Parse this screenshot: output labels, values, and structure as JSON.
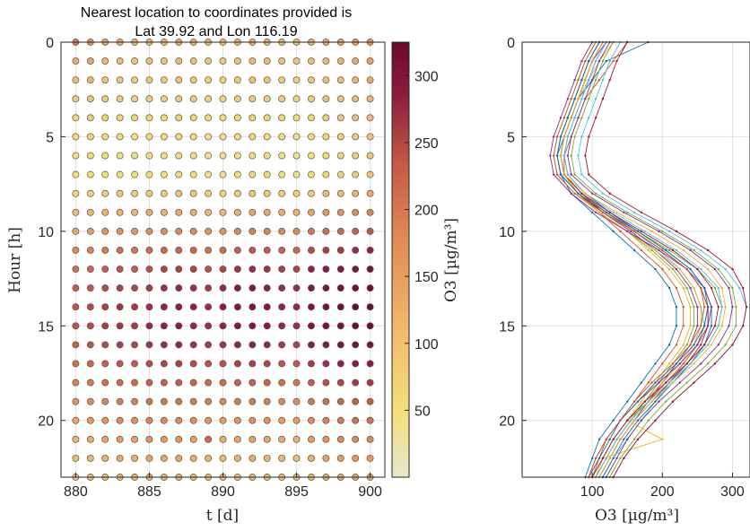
{
  "chart_data": [
    {
      "type": "scatter",
      "title": "Nearest location to coordinates provided is Lat 39.92 and Lon 116.19",
      "title_lines": [
        "Nearest location to coordinates provided is",
        "Lat 39.92 and Lon 116.19"
      ],
      "xlabel": "t [d]",
      "ylabel": "Hour [h]",
      "xlim": [
        879,
        901
      ],
      "ylim": [
        0,
        23
      ],
      "y_reversed": true,
      "x_ticks": [
        880,
        885,
        890,
        895,
        900
      ],
      "y_ticks": [
        0,
        5,
        10,
        15,
        20
      ],
      "grid": true,
      "x_days": [
        880,
        881,
        882,
        883,
        884,
        885,
        886,
        887,
        888,
        889,
        890,
        891,
        892,
        893,
        894,
        895,
        896,
        897,
        898,
        899,
        900
      ],
      "hours": [
        0,
        1,
        2,
        3,
        4,
        5,
        6,
        7,
        8,
        9,
        10,
        11,
        12,
        13,
        14,
        15,
        16,
        17,
        18,
        19,
        20,
        21,
        22,
        23
      ],
      "o3_matrix_by_day": [
        [
          180,
          120,
          100,
          80,
          70,
          60,
          50,
          55,
          70,
          100,
          130,
          160,
          190,
          210,
          220,
          220,
          210,
          190,
          170,
          150,
          130,
          110,
          100,
          90
        ],
        [
          150,
          130,
          110,
          90,
          80,
          70,
          60,
          60,
          80,
          110,
          140,
          170,
          200,
          220,
          230,
          230,
          220,
          200,
          180,
          160,
          140,
          120,
          110,
          100
        ],
        [
          130,
          110,
          95,
          80,
          70,
          60,
          55,
          60,
          80,
          110,
          150,
          180,
          210,
          230,
          240,
          240,
          230,
          210,
          190,
          170,
          150,
          130,
          115,
          105
        ],
        [
          120,
          100,
          90,
          80,
          70,
          60,
          55,
          60,
          85,
          115,
          155,
          190,
          220,
          240,
          250,
          250,
          240,
          220,
          200,
          180,
          160,
          140,
          125,
          110
        ],
        [
          110,
          95,
          85,
          75,
          65,
          55,
          50,
          55,
          80,
          110,
          150,
          185,
          215,
          235,
          245,
          245,
          235,
          215,
          195,
          175,
          155,
          135,
          120,
          105
        ],
        [
          115,
          100,
          90,
          80,
          70,
          60,
          55,
          60,
          85,
          120,
          160,
          195,
          225,
          245,
          255,
          260,
          250,
          230,
          210,
          190,
          170,
          150,
          130,
          115
        ],
        [
          110,
          95,
          85,
          75,
          65,
          55,
          50,
          55,
          80,
          115,
          160,
          200,
          235,
          255,
          265,
          265,
          255,
          235,
          210,
          185,
          160,
          140,
          125,
          110
        ],
        [
          120,
          105,
          95,
          85,
          75,
          65,
          60,
          65,
          90,
          125,
          165,
          205,
          240,
          260,
          270,
          270,
          260,
          240,
          215,
          190,
          165,
          145,
          130,
          115
        ],
        [
          115,
          100,
          90,
          80,
          70,
          60,
          55,
          60,
          85,
          120,
          160,
          200,
          235,
          255,
          265,
          260,
          250,
          230,
          205,
          180,
          155,
          135,
          120,
          105
        ],
        [
          105,
          90,
          80,
          70,
          60,
          50,
          45,
          50,
          75,
          110,
          150,
          190,
          225,
          245,
          255,
          255,
          245,
          225,
          200,
          175,
          150,
          200,
          115,
          100
        ],
        [
          100,
          85,
          75,
          65,
          55,
          45,
          40,
          45,
          70,
          105,
          150,
          195,
          235,
          260,
          270,
          265,
          250,
          225,
          195,
          165,
          140,
          120,
          105,
          95
        ],
        [
          110,
          95,
          85,
          75,
          65,
          55,
          50,
          55,
          80,
          120,
          165,
          210,
          250,
          275,
          285,
          280,
          265,
          240,
          210,
          180,
          150,
          130,
          115,
          100
        ],
        [
          120,
          105,
          95,
          85,
          75,
          65,
          60,
          65,
          90,
          130,
          175,
          220,
          255,
          280,
          285,
          280,
          265,
          240,
          210,
          180,
          155,
          135,
          120,
          105
        ],
        [
          115,
          100,
          90,
          80,
          70,
          60,
          55,
          60,
          85,
          125,
          170,
          215,
          250,
          270,
          280,
          275,
          260,
          235,
          205,
          175,
          150,
          130,
          115,
          100
        ],
        [
          110,
          95,
          85,
          75,
          65,
          55,
          50,
          55,
          80,
          120,
          165,
          205,
          240,
          260,
          265,
          260,
          245,
          220,
          190,
          165,
          140,
          125,
          110,
          95
        ],
        [
          105,
          90,
          80,
          70,
          60,
          50,
          45,
          50,
          75,
          115,
          160,
          200,
          235,
          255,
          260,
          255,
          240,
          215,
          185,
          160,
          140,
          120,
          105,
          95
        ],
        [
          115,
          100,
          90,
          80,
          70,
          60,
          55,
          60,
          90,
          135,
          185,
          230,
          265,
          285,
          290,
          285,
          270,
          245,
          215,
          185,
          160,
          140,
          125,
          110
        ],
        [
          125,
          110,
          100,
          90,
          80,
          70,
          65,
          70,
          100,
          145,
          195,
          240,
          275,
          295,
          300,
          295,
          280,
          255,
          225,
          195,
          170,
          150,
          135,
          120
        ],
        [
          130,
          115,
          105,
          95,
          85,
          75,
          70,
          75,
          105,
          150,
          200,
          245,
          280,
          300,
          305,
          305,
          290,
          265,
          235,
          205,
          180,
          160,
          140,
          125
        ],
        [
          140,
          125,
          115,
          105,
          95,
          85,
          80,
          85,
          115,
          160,
          210,
          255,
          290,
          310,
          320,
          315,
          300,
          275,
          245,
          215,
          190,
          165,
          145,
          130
        ],
        [
          150,
          135,
          125,
          115,
          105,
          95,
          90,
          95,
          125,
          170,
          220,
          265,
          300,
          315,
          320,
          315,
          300,
          275,
          245,
          215,
          190,
          165,
          145,
          130
        ]
      ],
      "colorbar": {
        "label": "O3 [µg/m³]",
        "label_tex": "O3 [μg/m3]",
        "range": [
          0,
          325
        ],
        "ticks": [
          50,
          100,
          150,
          200,
          250,
          300
        ],
        "colormap": [
          "#e6e6cc",
          "#f3e07a",
          "#f2b66b",
          "#e08a55",
          "#c45a45",
          "#8c1c3c",
          "#6b0a2e"
        ]
      }
    },
    {
      "type": "line",
      "xlabel": "O3 [µg/m³]",
      "xlim": [
        0,
        325
      ],
      "ylim": [
        0,
        23
      ],
      "y_reversed": true,
      "x_ticks": [
        100,
        200,
        300
      ],
      "y_ticks": [
        0,
        5,
        10,
        15,
        20
      ],
      "grid": true,
      "note": "one line per day: O3 concentration profile over hours",
      "series_colors": [
        "#0072bd",
        "#d95319",
        "#edb120",
        "#7e2f8e",
        "#77ac30",
        "#4dbeee",
        "#a2142f"
      ]
    }
  ]
}
